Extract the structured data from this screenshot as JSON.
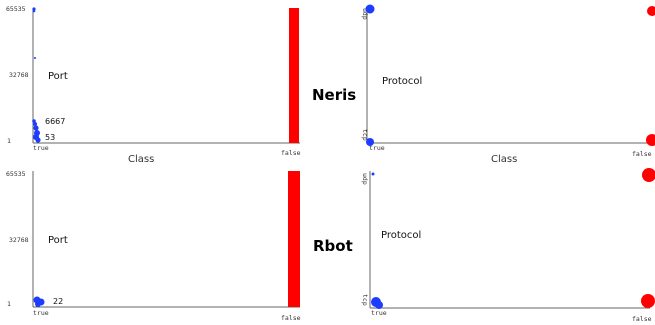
{
  "dataset_labels": [
    "Neris",
    "Rbot"
  ],
  "colors": {
    "true": "#1e3cff",
    "false": "#ff0000"
  },
  "chart_data": [
    {
      "type": "scatter",
      "x": "Class",
      "y": "Port",
      "x_categories": [
        "true",
        "false"
      ],
      "y_ticks": [
        "65535",
        "32768",
        "1"
      ],
      "ylim": [
        1,
        65535
      ],
      "xlabel": "Class",
      "inner_label": "Port",
      "annotations": [
        "6667",
        "53"
      ],
      "series": [
        {
          "class": "true",
          "points": [
            [
              0,
              1
            ],
            [
              0,
              53
            ],
            [
              0,
              6667
            ],
            [
              0,
              65535
            ],
            [
              0,
              55000
            ]
          ]
        },
        {
          "class": "false",
          "ranges": [
            [
              1,
              65535
            ]
          ]
        }
      ]
    },
    {
      "type": "scatter",
      "x": "Class",
      "y": "Protocol",
      "x_categories": [
        "true",
        "false"
      ],
      "y_ticks": [
        "udp",
        "tcp",
        "icmp"
      ],
      "xlabel": "Class",
      "inner_label": "Protocol",
      "annotations": [],
      "series": [
        {
          "class": "true",
          "points": [
            [
              "true",
              "udp"
            ],
            [
              "true",
              "tcp"
            ]
          ]
        },
        {
          "class": "false",
          "points": [
            [
              "false",
              "udp"
            ],
            [
              "false",
              "tcp"
            ]
          ]
        }
      ]
    },
    {
      "type": "scatter",
      "x": "Class",
      "y": "Port",
      "x_categories": [
        "true",
        "false"
      ],
      "y_ticks": [
        "65535",
        "32768",
        "1"
      ],
      "ylim": [
        1,
        65535
      ],
      "xlabel": "",
      "inner_label": "Port",
      "annotations": [
        "22"
      ],
      "series": [
        {
          "class": "true",
          "points": [
            [
              0,
              22
            ],
            [
              0,
              1
            ],
            [
              0,
              2000
            ]
          ]
        },
        {
          "class": "false",
          "ranges": [
            [
              1,
              65535
            ]
          ]
        }
      ]
    },
    {
      "type": "scatter",
      "x": "Class",
      "y": "Protocol",
      "x_categories": [
        "true",
        "false"
      ],
      "y_ticks": [
        "udp",
        "tcp",
        "icmp"
      ],
      "xlabel": "",
      "inner_label": "Protocol",
      "annotations": [],
      "series": [
        {
          "class": "true",
          "points": [
            [
              "true",
              "tcp"
            ],
            [
              "true",
              "icmp"
            ]
          ]
        },
        {
          "class": "false",
          "points": [
            [
              "false",
              "udp"
            ],
            [
              "false",
              "tcp"
            ]
          ]
        }
      ]
    }
  ]
}
